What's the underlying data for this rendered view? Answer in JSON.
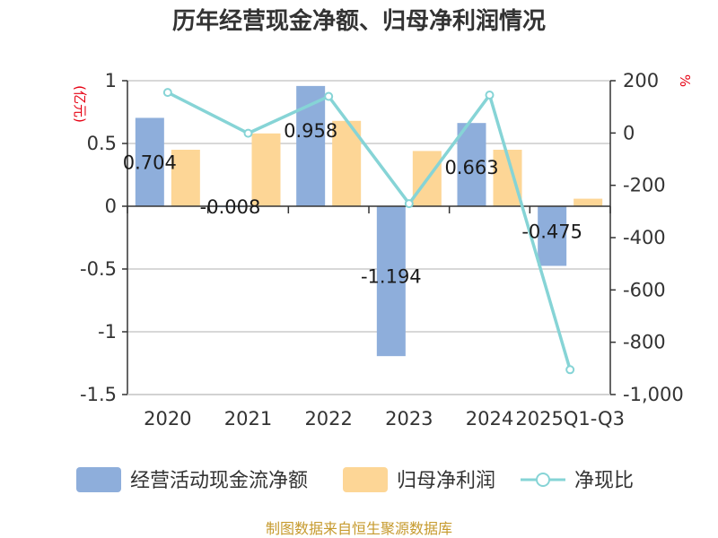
{
  "chart_data": {
    "type": "bar",
    "title": "历年经营现金净额、归母净利润情况",
    "categories": [
      "2020",
      "2021",
      "2022",
      "2023",
      "2024",
      "2025Q1-Q3"
    ],
    "series": [
      {
        "name": "经营活动现金流净额",
        "kind": "bar",
        "axis": "left",
        "color": "#8eaedb",
        "values": [
          0.704,
          -0.008,
          0.958,
          -1.194,
          0.663,
          -0.475
        ],
        "labels": [
          "0.704",
          "-0.008",
          "0.958",
          "-1.194",
          "0.663",
          "-0.475"
        ]
      },
      {
        "name": "归母净利润",
        "kind": "bar",
        "axis": "left",
        "color": "#fdd696",
        "values": [
          0.45,
          0.58,
          0.68,
          0.44,
          0.45,
          0.06
        ]
      },
      {
        "name": "净现比",
        "kind": "line",
        "axis": "right",
        "color": "#86d4d6",
        "values": [
          155,
          -1,
          140,
          -270,
          145,
          -905
        ]
      }
    ],
    "left_axis": {
      "unit": "(亿元)",
      "range": [
        -1.5,
        1
      ],
      "ticks": [
        1,
        0.5,
        0,
        -0.5,
        -1,
        -1.5
      ],
      "tick_labels": [
        "1",
        "0.5",
        "0",
        "-0.5",
        "-1",
        "-1.5"
      ]
    },
    "right_axis": {
      "unit": "%",
      "range": [
        -1000,
        200
      ],
      "ticks": [
        200,
        0,
        -200,
        -400,
        -600,
        -800,
        -1000
      ],
      "tick_labels": [
        "200",
        "0",
        "-200",
        "-400",
        "-600",
        "-800",
        "-1,000"
      ]
    },
    "grid": true,
    "legend": "bottom",
    "source": "制图数据来自恒生聚源数据库"
  }
}
